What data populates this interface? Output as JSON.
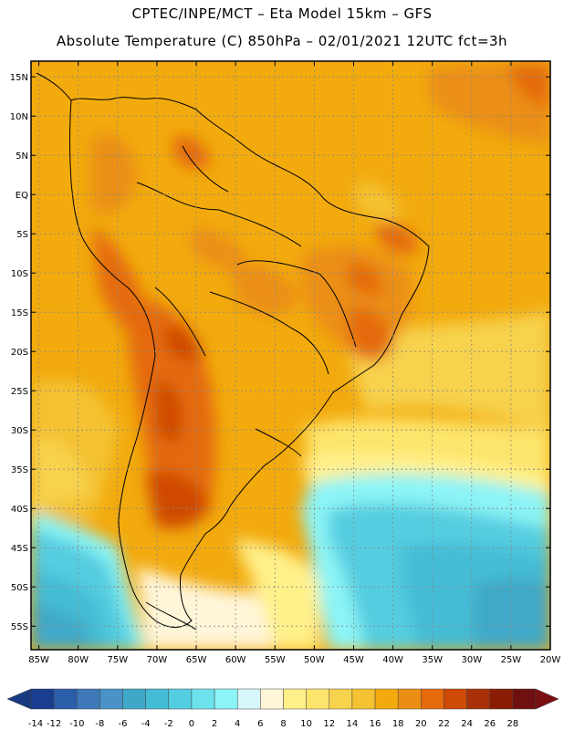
{
  "header": {
    "title_line1": "CPTEC/INPE/MCT –  Eta Model 15km – GFS",
    "title_line2": "Absolute Temperature (C) 850hPa – 02/01/2021 12UTC fct=3h"
  },
  "map": {
    "lat_labels": [
      "15N",
      "10N",
      "5N",
      "EQ",
      "5S",
      "10S",
      "15S",
      "20S",
      "25S",
      "30S",
      "35S",
      "40S",
      "45S",
      "50S",
      "55S"
    ],
    "lon_labels": [
      "85W",
      "80W",
      "75W",
      "70W",
      "65W",
      "60W",
      "55W",
      "50W",
      "45W",
      "40W",
      "35W",
      "30W",
      "25W",
      "20W"
    ],
    "lat_values": [
      15,
      10,
      5,
      0,
      -5,
      -10,
      -15,
      -20,
      -25,
      -30,
      -35,
      -40,
      -45,
      -50,
      -55
    ],
    "lon_values": [
      -85,
      -80,
      -75,
      -70,
      -65,
      -60,
      -55,
      -50,
      -45,
      -40,
      -35,
      -30,
      -25,
      -20
    ],
    "extent": {
      "lon_min": -86,
      "lon_max": -20,
      "lat_min": -58,
      "lat_max": 17
    },
    "background_color": "#f2aa0d"
  },
  "colorbar": {
    "labels": [
      "-14",
      "-12",
      "-10",
      "-8",
      "-6",
      "-4",
      "-2",
      "0",
      "2",
      "4",
      "6",
      "8",
      "10",
      "12",
      "14",
      "16",
      "18",
      "20",
      "22",
      "24",
      "26",
      "28"
    ],
    "colors": [
      "#1a3d8f",
      "#2a5ea8",
      "#3f78b8",
      "#4a93c8",
      "#3fa8c8",
      "#44bcd6",
      "#55cde0",
      "#6de2ec",
      "#8cf4f6",
      "#d5f7fc",
      "#fff5d8",
      "#fff08a",
      "#fde46a",
      "#f7d24d",
      "#f4c232",
      "#f2aa0d",
      "#eb8f14",
      "#e46a0a",
      "#cf4a06",
      "#a83006",
      "#8a1c06",
      "#6e1010"
    ],
    "under_color": "#173a80",
    "over_color": "#7a0f12"
  }
}
